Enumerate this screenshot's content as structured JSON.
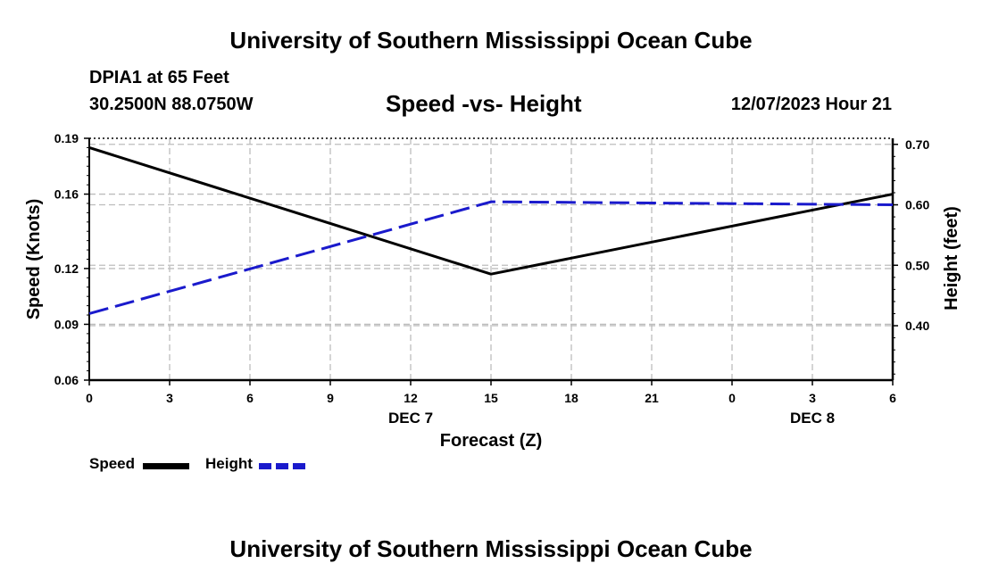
{
  "header": {
    "title": "University of Southern Mississippi Ocean Cube",
    "station": "DPIA1 at 65 Feet",
    "coords": "30.2500N  88.0750W",
    "datetime": "12/07/2023 Hour 21"
  },
  "footer": {
    "title": "University of Southern Mississippi Ocean Cube"
  },
  "legend": {
    "speed_label": "Speed",
    "height_label": "Height"
  },
  "chart_data": {
    "type": "line",
    "title": "Speed -vs- Height",
    "xlabel": "Forecast (Z)",
    "ylabel": "Speed (Knots)",
    "y2label": "Height (feet)",
    "x_ticks": [
      "0",
      "3",
      "6",
      "9",
      "12",
      "15",
      "18",
      "21",
      "0",
      "3",
      "6"
    ],
    "x_range": [
      0,
      30
    ],
    "date_labels": [
      {
        "text": "DEC 7",
        "x": 12
      },
      {
        "text": "DEC 8",
        "x": 27
      }
    ],
    "ylim": [
      0.06,
      0.19
    ],
    "y_ticks": [
      "0.06",
      "0.09",
      "0.12",
      "0.16",
      "0.19"
    ],
    "y_tick_values": [
      0.06,
      0.09,
      0.12,
      0.16,
      0.19
    ],
    "y2lim": [
      0.31,
      0.71
    ],
    "y2_ticks": [
      "0.40",
      "0.50",
      "0.60",
      "0.70"
    ],
    "y2_tick_values": [
      0.4,
      0.5,
      0.6,
      0.7
    ],
    "grid": true,
    "series": [
      {
        "name": "Speed",
        "axis": "left",
        "color": "#000000",
        "dash": "solid",
        "x": [
          0,
          15,
          30
        ],
        "values": [
          0.185,
          0.117,
          0.16
        ]
      },
      {
        "name": "Height",
        "axis": "right",
        "color": "#1a1acc",
        "dash": "dashed",
        "x": [
          0,
          15,
          30
        ],
        "values": [
          0.42,
          0.605,
          0.6
        ]
      }
    ]
  }
}
